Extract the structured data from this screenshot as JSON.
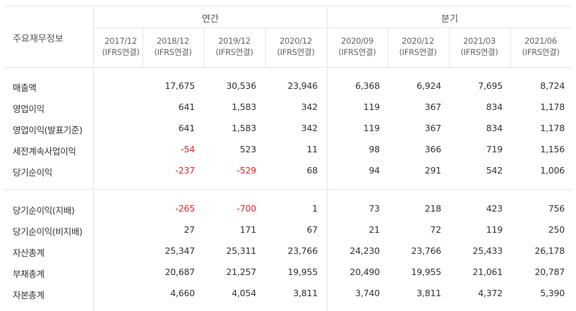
{
  "header": {
    "title": "주요재무정보",
    "groups": {
      "annual": "연간",
      "quarterly": "분기"
    },
    "periods": [
      {
        "date": "2017/12",
        "basis": "(IFRS연결)"
      },
      {
        "date": "2018/12",
        "basis": "(IFRS연결)"
      },
      {
        "date": "2019/12",
        "basis": "(IFRS연결)"
      },
      {
        "date": "2020/12",
        "basis": "(IFRS연결)"
      },
      {
        "date": "2020/09",
        "basis": "(IFRS연결)"
      },
      {
        "date": "2020/12",
        "basis": "(IFRS연결)"
      },
      {
        "date": "2021/03",
        "basis": "(IFRS연결)"
      },
      {
        "date": "2021/06",
        "basis": "(IFRS연결)"
      }
    ]
  },
  "colors": {
    "negative": "#e8242a",
    "text": "#333333",
    "border": "#e6e6e6"
  },
  "rows": [
    {
      "label": "매출액",
      "values": [
        "",
        "17,675",
        "30,536",
        "23,946",
        "6,368",
        "6,924",
        "7,695",
        "8,724"
      ]
    },
    {
      "label": "영업이익",
      "values": [
        "",
        "641",
        "1,583",
        "342",
        "119",
        "367",
        "834",
        "1,178"
      ]
    },
    {
      "label": "영업이익(발표기준)",
      "values": [
        "",
        "641",
        "1,583",
        "342",
        "119",
        "367",
        "834",
        "1,178"
      ]
    },
    {
      "label": "세전계속사업이익",
      "values": [
        "",
        "-54",
        "523",
        "11",
        "98",
        "366",
        "719",
        "1,156"
      ]
    },
    {
      "label": "당기순이익",
      "values": [
        "",
        "-237",
        "-529",
        "68",
        "94",
        "291",
        "542",
        "1,006"
      ]
    },
    {
      "label": "당기순이익(지배)",
      "values": [
        "",
        "-265",
        "-700",
        "1",
        "73",
        "218",
        "423",
        "756"
      ]
    },
    {
      "label": "당기순이익(비지배)",
      "values": [
        "",
        "27",
        "171",
        "67",
        "21",
        "72",
        "119",
        "250"
      ]
    },
    {
      "label": "자산총계",
      "values": [
        "",
        "25,347",
        "25,311",
        "23,766",
        "24,230",
        "23,766",
        "25,433",
        "26,178"
      ]
    },
    {
      "label": "부채총계",
      "values": [
        "",
        "20,687",
        "21,257",
        "19,955",
        "20,490",
        "19,955",
        "21,061",
        "20,787"
      ]
    },
    {
      "label": "자본총계",
      "values": [
        "",
        "4,660",
        "4,054",
        "3,811",
        "3,740",
        "3,811",
        "4,372",
        "5,390"
      ]
    }
  ]
}
